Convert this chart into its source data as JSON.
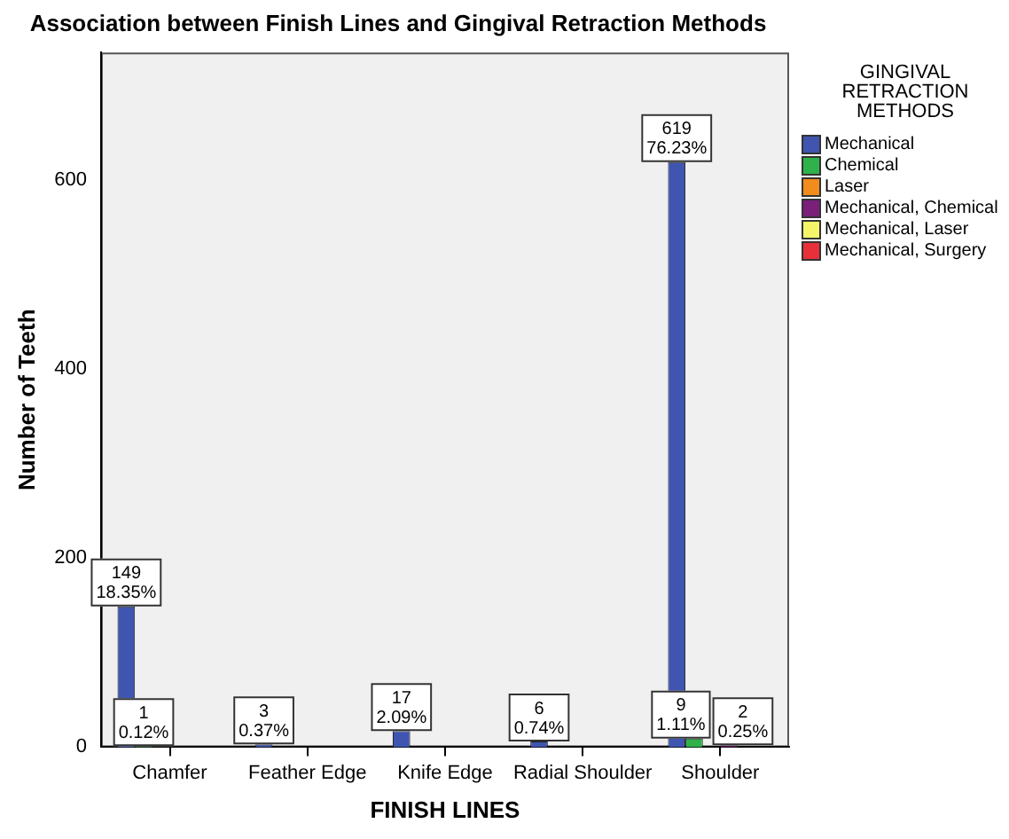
{
  "chart_data": {
    "type": "bar",
    "title": "Association between Finish Lines and Gingival Retraction Methods",
    "xlabel": "FINISH LINES",
    "ylabel": "Number of Teeth",
    "legend_title": "GINGIVAL RETRACTION METHODS",
    "categories": [
      "Chamfer",
      "Feather Edge",
      "Knife Edge",
      "Radial Shoulder",
      "Shoulder"
    ],
    "series": [
      {
        "name": "Mechanical",
        "color": "#3f55b0",
        "values": [
          149,
          3,
          17,
          6,
          619
        ],
        "value_labels": [
          "149\n18.35%",
          "3\n0.37%",
          "17\n2.09%",
          "6\n0.74%",
          "619\n76.23%"
        ]
      },
      {
        "name": "Chemical",
        "color": "#2fb24a",
        "values": [
          1,
          null,
          null,
          null,
          9
        ],
        "value_labels": [
          "1\n0.12%",
          null,
          null,
          null,
          "9\n1.11%"
        ]
      },
      {
        "name": "Laser",
        "color": "#f28c1c",
        "values": [
          null,
          null,
          null,
          null,
          null
        ]
      },
      {
        "name": "Mechanical, Chemical",
        "color": "#7a1f7a",
        "values": [
          null,
          null,
          null,
          null,
          2
        ],
        "value_labels": [
          null,
          null,
          null,
          null,
          "2\n0.25%"
        ]
      },
      {
        "name": "Mechanical, Laser",
        "color": "#f5f56a",
        "values": [
          null,
          null,
          null,
          null,
          null
        ]
      },
      {
        "name": "Mechanical, Surgery",
        "color": "#e8303a",
        "values": [
          null,
          null,
          null,
          null,
          null
        ]
      }
    ],
    "ylim": [
      0,
      735
    ],
    "yticks": [
      0,
      200,
      400,
      600
    ],
    "grid": false,
    "legend": "right"
  }
}
